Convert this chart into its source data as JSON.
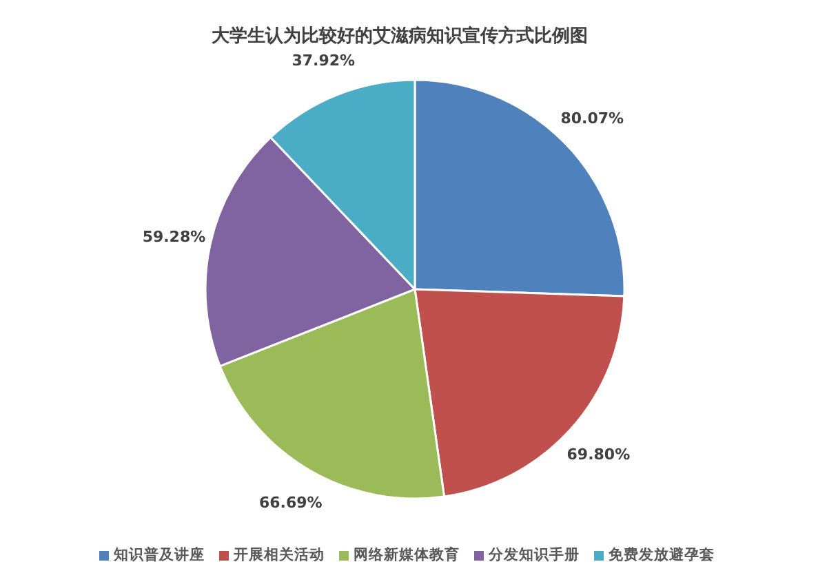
{
  "chart_data": {
    "type": "pie",
    "title": "大学生认为比较好的艾滋病知识宣传方式比例图",
    "categories": [
      "知识普及讲座",
      "开展相关活动",
      "网络新媒体教育",
      "分发知识手册",
      "免费发放避孕套"
    ],
    "values": [
      80.07,
      69.8,
      66.69,
      59.28,
      37.92
    ],
    "colors": [
      "#4f81bd",
      "#c0504d",
      "#9bbb59",
      "#8064a2",
      "#4bacc6"
    ],
    "value_labels": [
      "80.07%",
      "69.80%",
      "66.69%",
      "59.28%",
      "37.92%"
    ],
    "legend": "bottom"
  }
}
